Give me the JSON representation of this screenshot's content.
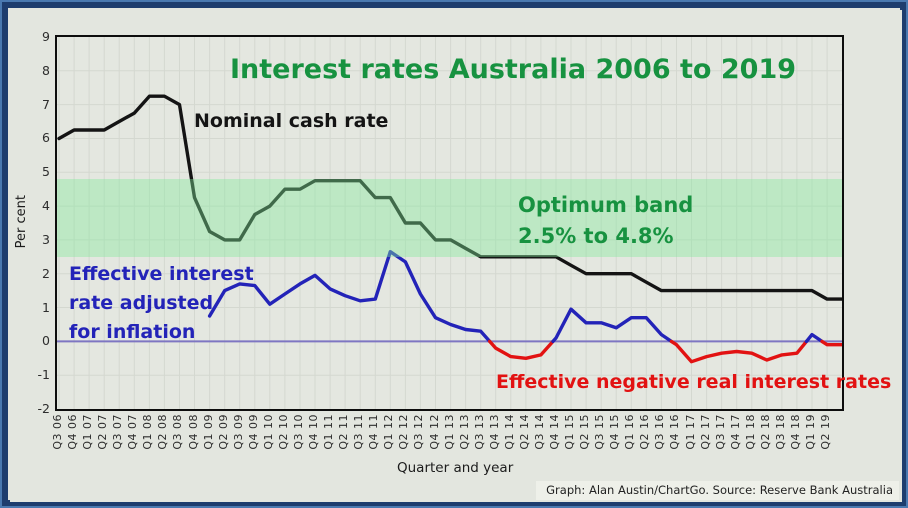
{
  "labels": {
    "title": "Interest rates Australia 2006 to 2019",
    "nominal": "Nominal cash rate",
    "optimum_line1": "Optimum band",
    "optimum_line2": "2.5% to 4.8%",
    "effective_line1": "Effective interest",
    "effective_line2": "rate adjusted",
    "effective_line3": "for inflation",
    "negative": "Effective negative real interest rates",
    "ylabel": "Per cent",
    "xlabel": "Quarter and year",
    "credit": "Graph: Alan Austin/ChartGo. Source: Reserve Bank Australia"
  },
  "colors": {
    "title_green": "#179240",
    "annotation_blue": "#2323b8",
    "annotation_red": "#e21212",
    "line_black": "#141414",
    "zero_line": "#7e76c2",
    "gridline": "#d4d8d0",
    "band_fill": "rgba(130,235,155,0.40)",
    "frame_navy": "#1e3d6e",
    "background": "#e3e6df"
  },
  "chart_data": {
    "type": "line",
    "title": "Interest rates Australia 2006 to 2019",
    "xlabel": "Quarter and year",
    "ylabel": "Per cent",
    "ylim": [
      -2,
      9
    ],
    "y_ticks": [
      9,
      8,
      7,
      6,
      5,
      4,
      3,
      2,
      1,
      0,
      -1,
      -2
    ],
    "grid": true,
    "legend_position": "none",
    "categories": [
      "Q3 06",
      "Q4 06",
      "Q1 07",
      "Q2 07",
      "Q3 07",
      "Q4 07",
      "Q1 08",
      "Q2 08",
      "Q3 08",
      "Q4 08",
      "Q1 09",
      "Q2 09",
      "Q3 09",
      "Q4 09",
      "Q1 10",
      "Q2 10",
      "Q3 10",
      "Q4 10",
      "Q1 11",
      "Q2 11",
      "Q3 11",
      "Q4 11",
      "Q1 12",
      "Q2 12",
      "Q3 12",
      "Q4 12",
      "Q1 13",
      "Q2 13",
      "Q3 13",
      "Q4 13",
      "Q1 14",
      "Q2 14",
      "Q3 14",
      "Q4 14",
      "Q1 15",
      "Q2 15",
      "Q3 15",
      "Q4 15",
      "Q1 16",
      "Q2 16",
      "Q3 16",
      "Q4 16",
      "Q1 17",
      "Q2 17",
      "Q3 17",
      "Q4 17",
      "Q1 18",
      "Q2 18",
      "Q3 18",
      "Q4 18",
      "Q1 19",
      "Q2 19"
    ],
    "series": [
      {
        "name": "Nominal cash rate",
        "color": "#141414",
        "start_index": 0,
        "values": [
          6.0,
          6.25,
          6.25,
          6.25,
          6.5,
          6.75,
          7.25,
          7.25,
          7.0,
          4.25,
          3.25,
          3.0,
          3.0,
          3.75,
          4.0,
          4.5,
          4.5,
          4.75,
          4.75,
          4.75,
          4.75,
          4.25,
          4.25,
          3.5,
          3.5,
          3.0,
          3.0,
          2.75,
          2.5,
          2.5,
          2.5,
          2.5,
          2.5,
          2.5,
          2.25,
          2.0,
          2.0,
          2.0,
          2.0,
          1.75,
          1.5,
          1.5,
          1.5,
          1.5,
          1.5,
          1.5,
          1.5,
          1.5,
          1.5,
          1.5,
          1.5,
          1.25
        ]
      },
      {
        "name": "Effective interest rate adjusted for inflation",
        "positive_color": "#2323b8",
        "negative_color": "#e21212",
        "start_index": 10,
        "values": [
          0.75,
          1.5,
          1.7,
          1.65,
          1.1,
          1.4,
          1.7,
          1.95,
          1.55,
          1.35,
          1.2,
          1.25,
          2.65,
          2.35,
          1.4,
          0.7,
          0.5,
          0.35,
          0.3,
          -0.2,
          -0.45,
          -0.5,
          -0.4,
          0.1,
          0.95,
          0.55,
          0.55,
          0.4,
          0.7,
          0.7,
          0.2,
          -0.1,
          -0.6,
          -0.45,
          -0.35,
          -0.3,
          -0.35,
          -0.55,
          -0.4,
          -0.35,
          0.2,
          -0.1
        ]
      }
    ],
    "optimum_band": {
      "from": 2.5,
      "to": 4.8,
      "label": "Optimum band",
      "range_label": "2.5% to 4.8%"
    },
    "zero_line": 0
  }
}
